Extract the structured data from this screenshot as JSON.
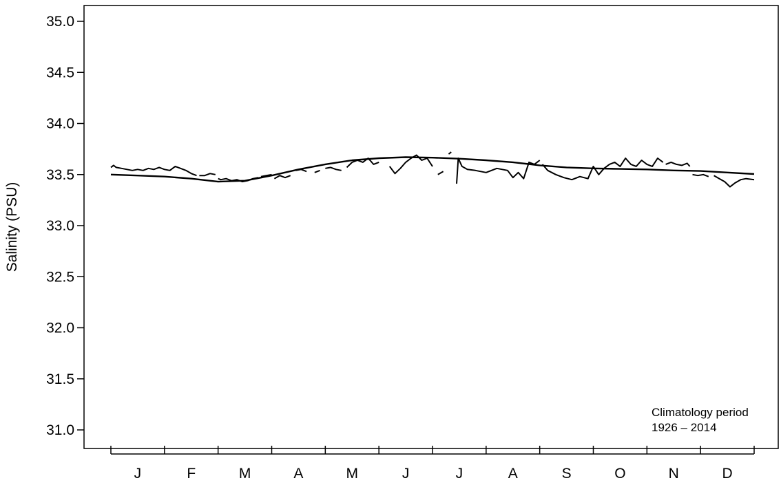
{
  "chart_data": {
    "type": "line",
    "ylabel": "Salinity (PSU)",
    "xlabel": "",
    "ylim": [
      30.85,
      35.15
    ],
    "xlim": [
      0,
      12
    ],
    "y_ticks": [
      "31.0",
      "31.5",
      "32.0",
      "32.5",
      "33.0",
      "33.5",
      "34.0",
      "34.5",
      "35.0"
    ],
    "month_labels": [
      "J",
      "F",
      "M",
      "A",
      "M",
      "J",
      "J",
      "A",
      "S",
      "O",
      "N",
      "D"
    ],
    "annotation": [
      "Climatology period",
      "1926 – 2014"
    ],
    "series": [
      {
        "style": "smooth",
        "x": [
          0.0,
          0.5,
          1.0,
          1.5,
          2.0,
          2.5,
          3.0,
          3.5,
          4.0,
          4.5,
          5.0,
          5.5,
          6.0,
          6.5,
          7.0,
          7.5,
          8.0,
          8.5,
          9.0,
          9.5,
          10.0,
          10.5,
          11.0,
          11.5,
          12.0
        ],
        "y": [
          33.5,
          33.49,
          33.48,
          33.46,
          33.43,
          33.44,
          33.49,
          33.55,
          33.6,
          33.64,
          33.66,
          33.67,
          33.665,
          33.655,
          33.64,
          33.62,
          33.59,
          33.57,
          33.56,
          33.555,
          33.55,
          33.54,
          33.535,
          33.52,
          33.505
        ]
      },
      {
        "style": "daily",
        "segments": [
          {
            "x": [
              0.0,
              0.05,
              0.1,
              0.2,
              0.3,
              0.4,
              0.5,
              0.6,
              0.7,
              0.8,
              0.9,
              1.0,
              1.1,
              1.2,
              1.3,
              1.4,
              1.5,
              1.6
            ],
            "y": [
              33.57,
              33.59,
              33.57,
              33.56,
              33.55,
              33.54,
              33.55,
              33.54,
              33.56,
              33.55,
              33.57,
              33.55,
              33.54,
              33.58,
              33.56,
              33.54,
              33.51,
              33.49
            ]
          },
          {
            "x": [
              1.65,
              1.75,
              1.85,
              1.95
            ],
            "y": [
              33.49,
              33.49,
              33.51,
              33.5
            ]
          },
          {
            "x": [
              2.0,
              2.05,
              2.15,
              2.25,
              2.35,
              2.45,
              2.55,
              2.65,
              2.75
            ],
            "y": [
              33.46,
              33.45,
              33.46,
              33.44,
              33.45,
              33.43,
              33.44,
              33.46,
              33.47
            ]
          },
          {
            "x": [
              2.8,
              2.9,
              3.0
            ],
            "y": [
              33.48,
              33.49,
              33.5
            ]
          },
          {
            "x": [
              3.05,
              3.15,
              3.25,
              3.35
            ],
            "y": [
              33.46,
              33.49,
              33.47,
              33.49
            ]
          },
          {
            "x": [
              3.45,
              3.55,
              3.65
            ],
            "y": [
              33.54,
              33.55,
              33.53
            ]
          },
          {
            "x": [
              3.8,
              3.9
            ],
            "y": [
              33.52,
              33.54
            ]
          },
          {
            "x": [
              4.0,
              4.1,
              4.2,
              4.3
            ],
            "y": [
              33.56,
              33.57,
              33.55,
              33.54
            ]
          },
          {
            "x": [
              4.4,
              4.5,
              4.6,
              4.7,
              4.8,
              4.9,
              5.0
            ],
            "y": [
              33.57,
              33.62,
              33.64,
              33.62,
              33.66,
              33.6,
              33.62
            ]
          },
          {
            "x": [
              5.2,
              5.3,
              5.4,
              5.5,
              5.6,
              5.7,
              5.8,
              5.9,
              6.0
            ],
            "y": [
              33.58,
              33.51,
              33.56,
              33.62,
              33.66,
              33.69,
              33.64,
              33.66,
              33.58
            ]
          },
          {
            "x": [
              6.1,
              6.2
            ],
            "y": [
              33.5,
              33.53
            ]
          },
          {
            "x": [
              6.3,
              6.35
            ],
            "y": [
              33.7,
              33.72
            ]
          },
          {
            "x": [
              6.45,
              6.48,
              6.55,
              6.65,
              6.8,
              7.0,
              7.2,
              7.4,
              7.5,
              7.6,
              7.7,
              7.8,
              7.9,
              8.0
            ],
            "y": [
              33.41,
              33.66,
              33.58,
              33.55,
              33.54,
              33.52,
              33.56,
              33.54,
              33.47,
              33.52,
              33.46,
              33.62,
              33.6,
              33.64
            ]
          },
          {
            "x": [
              8.05,
              8.15,
              8.3,
              8.45,
              8.6,
              8.75,
              8.9,
              9.0,
              9.1,
              9.2,
              9.3,
              9.4,
              9.5,
              9.6,
              9.7,
              9.8,
              9.9,
              10.0,
              10.1,
              10.2,
              10.3
            ],
            "y": [
              33.6,
              33.54,
              33.5,
              33.47,
              33.45,
              33.48,
              33.46,
              33.58,
              33.5,
              33.56,
              33.6,
              33.62,
              33.58,
              33.66,
              33.6,
              33.58,
              33.64,
              33.6,
              33.58,
              33.66,
              33.62
            ]
          },
          {
            "x": [
              10.35,
              10.45,
              10.55,
              10.65,
              10.75,
              10.8
            ],
            "y": [
              33.6,
              33.62,
              33.6,
              33.59,
              33.61,
              33.58
            ]
          },
          {
            "x": [
              10.85,
              10.95,
              11.05,
              11.15
            ],
            "y": [
              33.5,
              33.49,
              33.5,
              33.48
            ]
          },
          {
            "x": [
              11.25,
              11.35,
              11.45,
              11.55,
              11.65,
              11.75,
              11.85,
              12.0
            ],
            "y": [
              33.49,
              33.46,
              33.43,
              33.38,
              33.42,
              33.45,
              33.46,
              33.45
            ]
          }
        ]
      }
    ],
    "grid": false,
    "legend": "none"
  }
}
